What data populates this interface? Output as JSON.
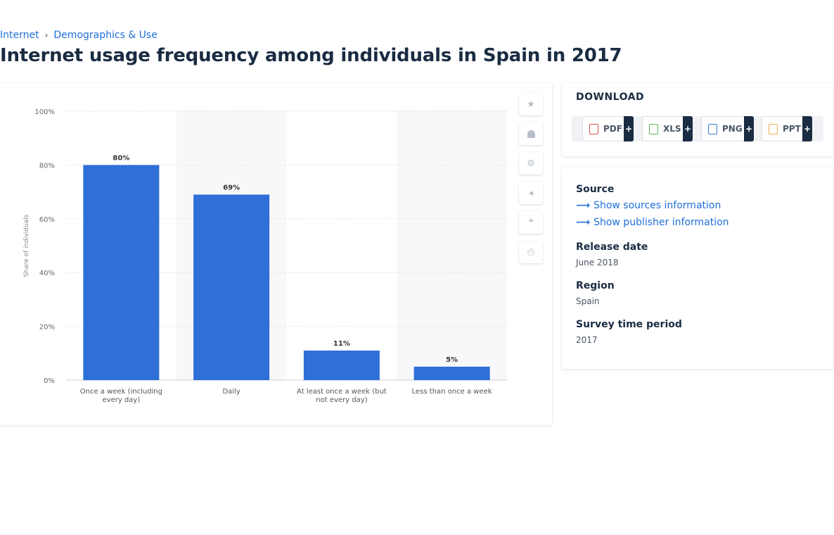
{
  "breadcrumb": {
    "items": [
      "Internet",
      "Demographics & Use"
    ],
    "separator": "›"
  },
  "page_title": "Internet usage frequency among individuals in Spain in 2017",
  "chart_data": {
    "type": "bar",
    "categories": [
      "Once a week (including every day)",
      "Daily",
      "At least once a week (but not every day)",
      "Less than once a week"
    ],
    "values": [
      80,
      69,
      11,
      5
    ],
    "data_labels": [
      "80%",
      "69%",
      "11%",
      "5%"
    ],
    "ylabel": "Share of individuals",
    "ylim": [
      0,
      100
    ],
    "yticks": [
      "0%",
      "20%",
      "40%",
      "60%",
      "80%",
      "100%"
    ],
    "bar_color": "#2f6fd8",
    "grid": true
  },
  "tools": [
    {
      "name": "favorite",
      "icon": "star-icon",
      "glyph": "★"
    },
    {
      "name": "notification",
      "icon": "bell-icon",
      "glyph": "🔔"
    },
    {
      "name": "settings",
      "icon": "gear-icon",
      "glyph": "⚙"
    },
    {
      "name": "share",
      "icon": "share-icon",
      "glyph": "<"
    },
    {
      "name": "cite",
      "icon": "quote-icon",
      "glyph": "❝"
    },
    {
      "name": "print",
      "icon": "print-icon",
      "glyph": "⎙"
    }
  ],
  "download": {
    "title": "DOWNLOAD",
    "formats": [
      {
        "label": "PDF",
        "icon": "pdf-file-icon",
        "color": "#d9534f"
      },
      {
        "label": "XLS",
        "icon": "xls-file-icon",
        "color": "#5cb85c"
      },
      {
        "label": "PNG",
        "icon": "png-file-icon",
        "color": "#3a7bd5"
      },
      {
        "label": "PPT",
        "icon": "ppt-file-icon",
        "color": "#f0ad4e"
      }
    ],
    "plus": "+"
  },
  "info": {
    "source_label": "Source",
    "show_sources": "Show sources information",
    "show_publisher": "Show publisher information",
    "release_label": "Release date",
    "release_value": "June 2018",
    "region_label": "Region",
    "region_value": "Spain",
    "period_label": "Survey time period",
    "period_value": "2017"
  }
}
